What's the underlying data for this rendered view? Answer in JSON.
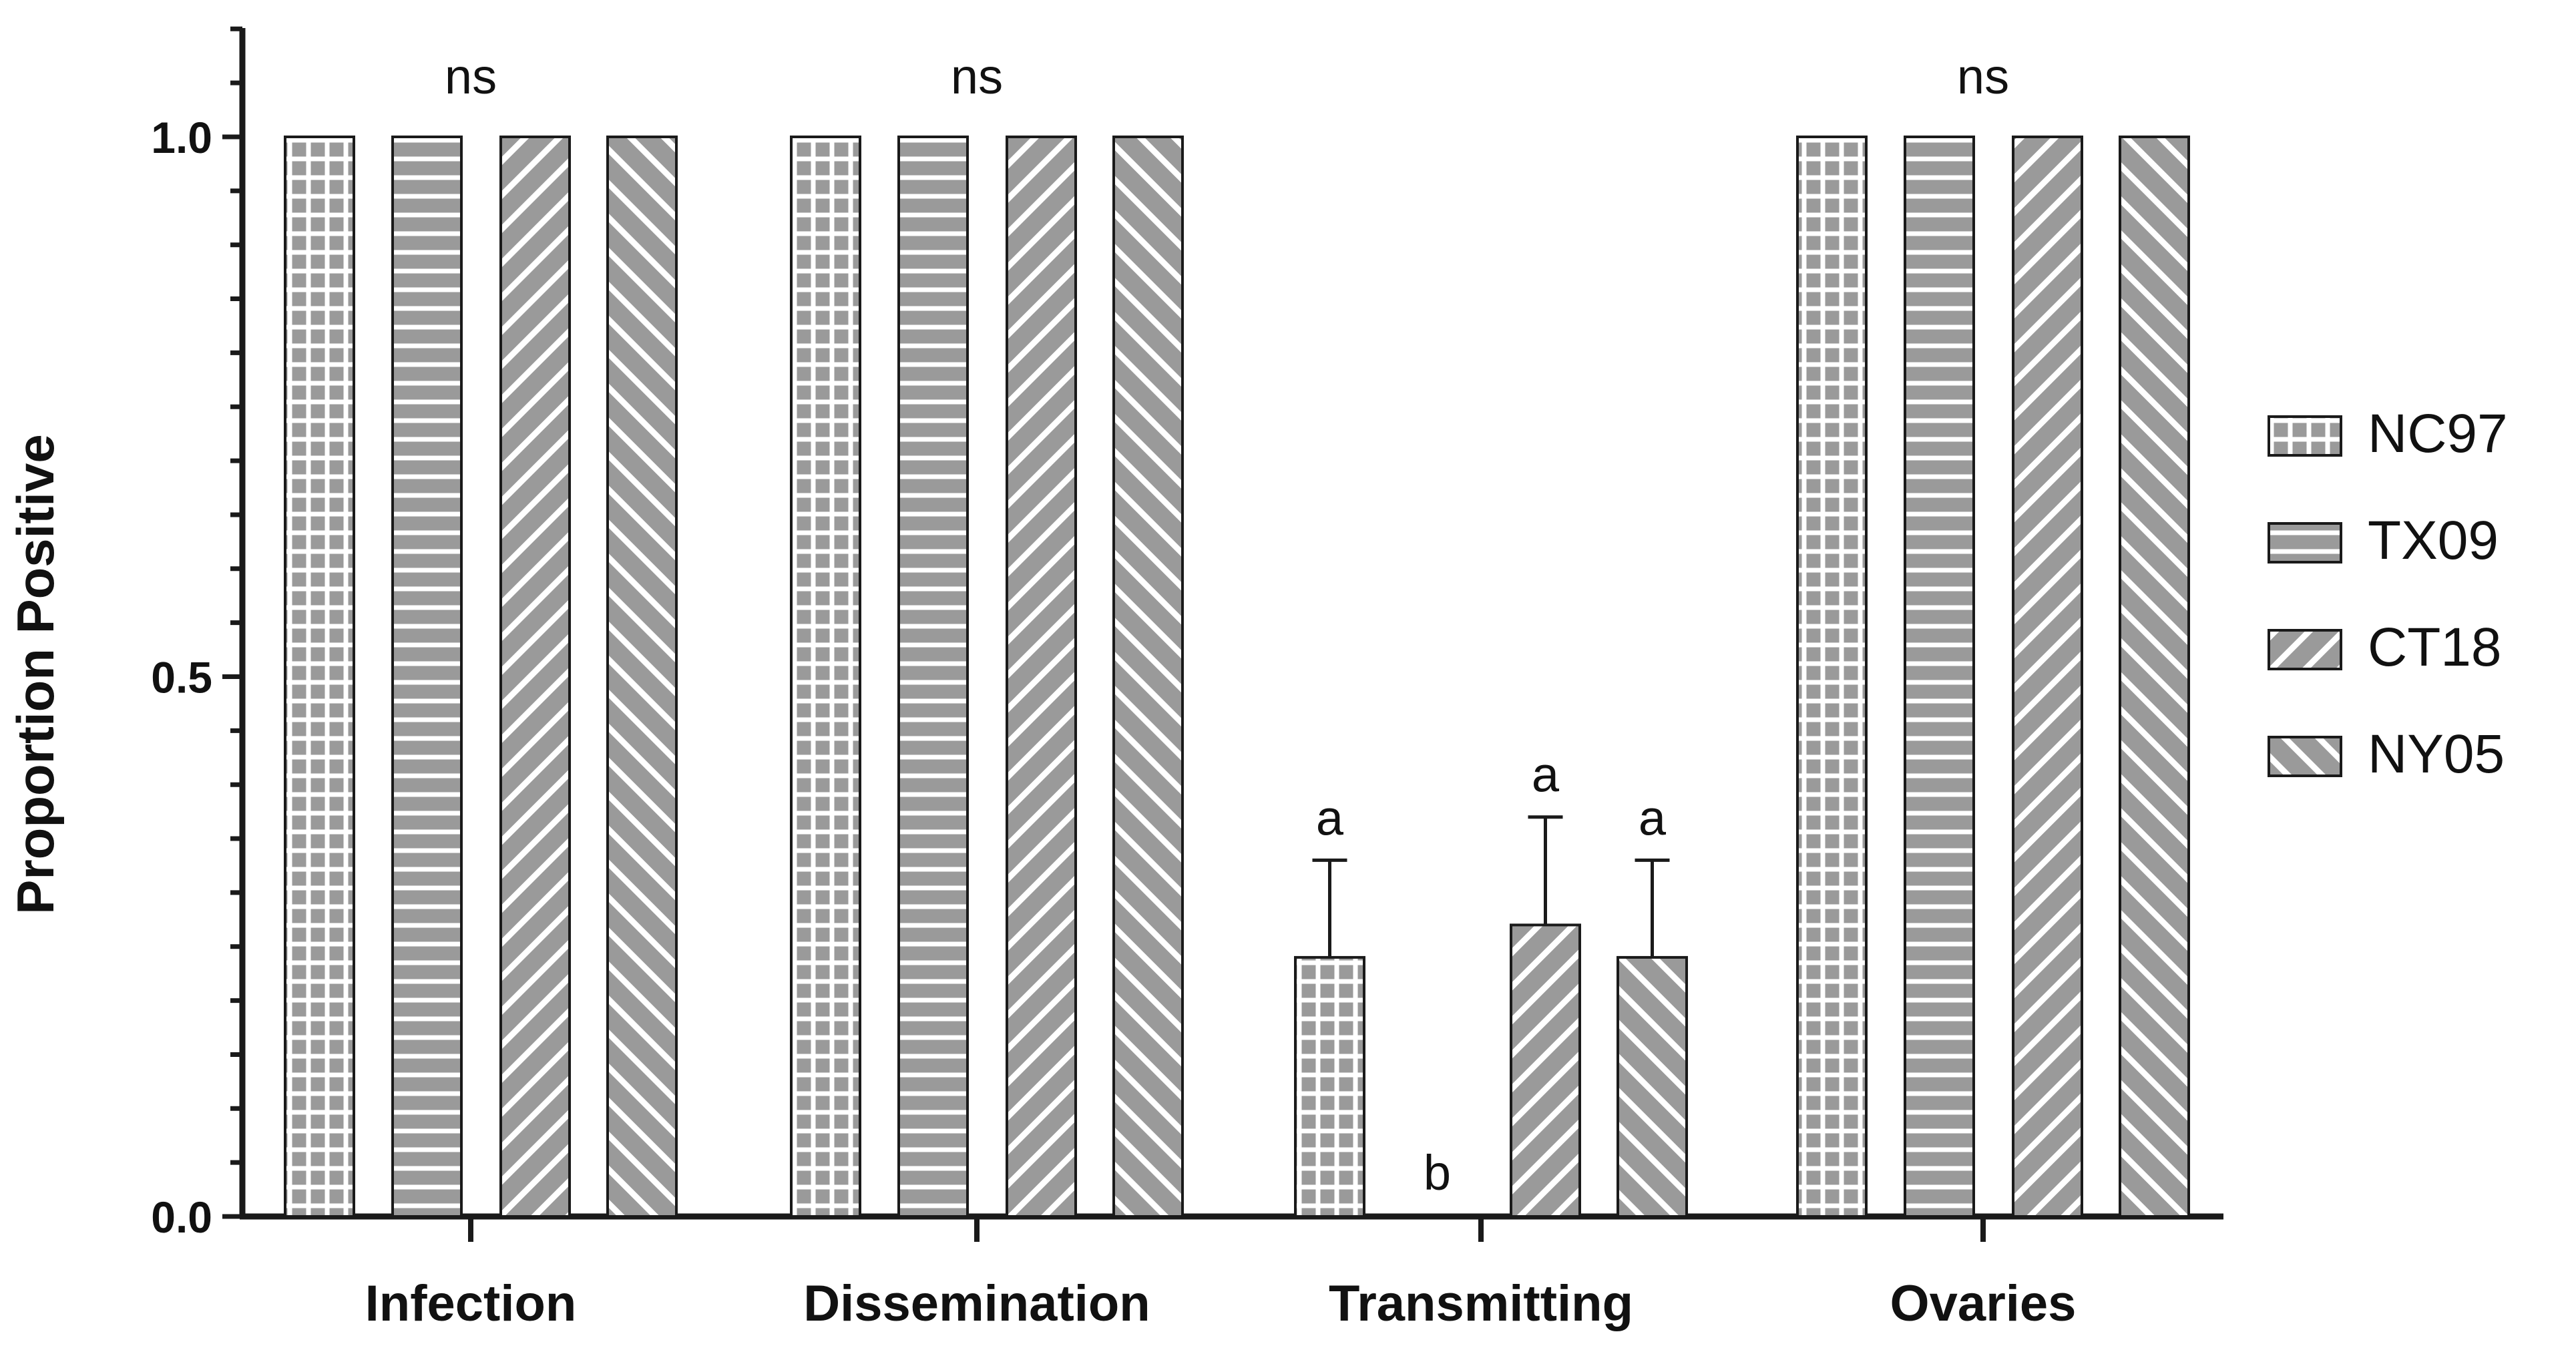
{
  "chart_data": {
    "type": "bar",
    "ylabel": "Proportion Positive",
    "xlabel": "",
    "ylim": [
      0,
      1.1
    ],
    "yticks": [
      "0.0",
      "0.5",
      "1.0"
    ],
    "yminor_step": 0.05,
    "categories": [
      "Infection",
      "Dissemination",
      "Transmitting",
      "Ovaries"
    ],
    "series": [
      {
        "name": "NC97",
        "pattern": "grid",
        "values": [
          1.0,
          1.0,
          0.24,
          1.0
        ],
        "errors": [
          null,
          null,
          0.09,
          null
        ],
        "labels": [
          "",
          "",
          "a",
          ""
        ]
      },
      {
        "name": "TX09",
        "pattern": "hlines",
        "values": [
          1.0,
          1.0,
          0.0,
          1.0
        ],
        "errors": [
          null,
          null,
          null,
          null
        ],
        "labels": [
          "",
          "",
          "b",
          ""
        ]
      },
      {
        "name": "CT18",
        "pattern": "diag-back",
        "values": [
          1.0,
          1.0,
          0.27,
          1.0
        ],
        "errors": [
          null,
          null,
          0.1,
          null
        ],
        "labels": [
          "",
          "",
          "a",
          ""
        ]
      },
      {
        "name": "NY05",
        "pattern": "diag-fwd",
        "values": [
          1.0,
          1.0,
          0.24,
          1.0
        ],
        "errors": [
          null,
          null,
          0.09,
          null
        ],
        "labels": [
          "",
          "",
          "a",
          ""
        ]
      }
    ],
    "group_annotations": [
      "ns",
      "ns",
      "",
      "ns"
    ],
    "legend_position": "right",
    "colors": {
      "fill": "#9a9a9a",
      "stroke": "#1a1a1a",
      "pattern_line": "#ffffff"
    }
  }
}
